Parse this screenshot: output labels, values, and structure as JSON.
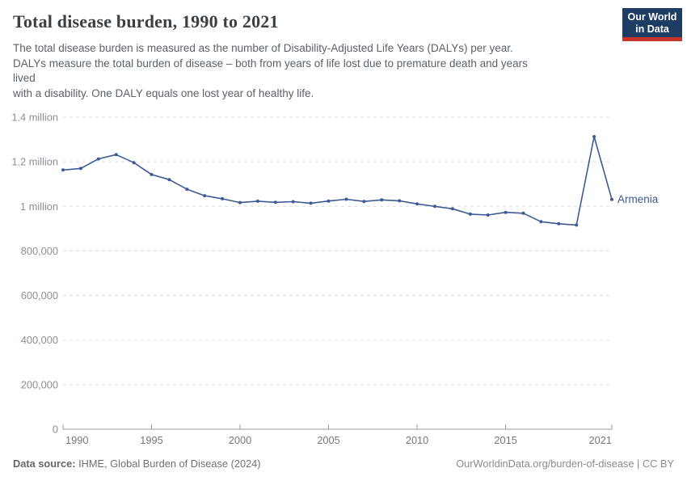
{
  "header": {
    "title": "Total disease burden, 1990 to 2021",
    "subtitle": "The total disease burden is measured as the number of Disability-Adjusted Life Years (DALYs) per year.\nDALYs measure the total burden of disease – both from years of life lost due to premature death and years\nlived\nwith a disability. One DALY equals one lost year of healthy life.",
    "logo": {
      "line1": "Our World",
      "line2": "in Data",
      "bg_color": "#1d3d63",
      "bar_color": "#c5352c"
    }
  },
  "chart_data": {
    "type": "line",
    "title": "Total disease burden, 1990 to 2021",
    "xlabel": "",
    "ylabel": "",
    "xlim": [
      1990,
      2021
    ],
    "ylim": [
      0,
      1400000
    ],
    "grid": "horizontal-dashed",
    "legend_position": "end-of-line-label",
    "colors": {
      "grid": "#dedede",
      "axis": "#9b9b9b"
    },
    "yticks": [
      {
        "value": 0,
        "label": "0"
      },
      {
        "value": 200000,
        "label": "200,000"
      },
      {
        "value": 400000,
        "label": "400,000"
      },
      {
        "value": 600000,
        "label": "600,000"
      },
      {
        "value": 800000,
        "label": "800,000"
      },
      {
        "value": 1000000,
        "label": "1 million"
      },
      {
        "value": 1200000,
        "label": "1.2 million"
      },
      {
        "value": 1400000,
        "label": "1.4 million"
      }
    ],
    "xticks": [
      {
        "value": 1990,
        "label": "1990"
      },
      {
        "value": 1995,
        "label": "1995"
      },
      {
        "value": 2000,
        "label": "2000"
      },
      {
        "value": 2005,
        "label": "2005"
      },
      {
        "value": 2010,
        "label": "2010"
      },
      {
        "value": 2015,
        "label": "2015"
      },
      {
        "value": 2021,
        "label": "2021"
      }
    ],
    "series": [
      {
        "name": "Armenia",
        "color": "#3d5a96",
        "x": [
          1990,
          1991,
          1992,
          1993,
          1994,
          1995,
          1996,
          1997,
          1998,
          1999,
          2000,
          2001,
          2002,
          2003,
          2004,
          2005,
          2006,
          2007,
          2008,
          2009,
          2010,
          2011,
          2012,
          2013,
          2014,
          2015,
          2016,
          2017,
          2018,
          2019,
          2020,
          2021
        ],
        "values": [
          1163000,
          1170000,
          1213000,
          1232000,
          1196000,
          1143000,
          1120000,
          1077000,
          1048000,
          1034000,
          1017000,
          1023000,
          1018000,
          1021000,
          1014000,
          1024000,
          1032000,
          1022000,
          1029000,
          1025000,
          1011000,
          1000000,
          989000,
          965000,
          961000,
          973000,
          969000,
          931000,
          922000,
          916000,
          1313000,
          1031000
        ]
      }
    ]
  },
  "footer": {
    "source_label": "Data source:",
    "source_text": " IHME, Global Burden of Disease (2024)",
    "credit": "OurWorldinData.org/burden-of-disease | CC BY"
  }
}
